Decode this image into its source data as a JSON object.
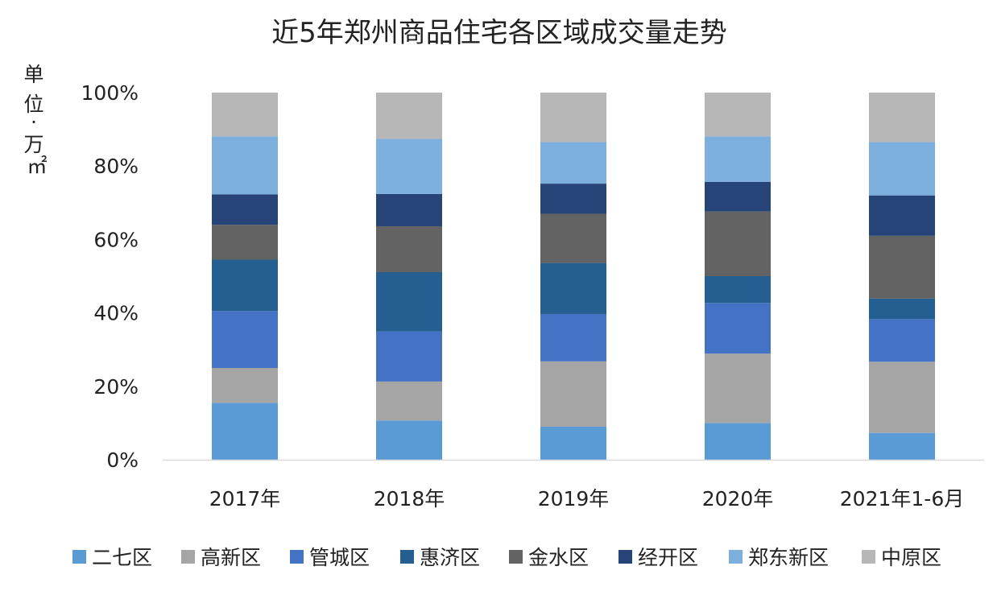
{
  "chart_data": {
    "type": "bar",
    "stacked": true,
    "normalized": true,
    "title": "近5年郑州商品住宅各区域成交量走势",
    "ylabel_lines": [
      "单",
      "位",
      "·",
      "万",
      "㎡"
    ],
    "ylim": [
      0,
      100
    ],
    "yticks": [
      0,
      20,
      40,
      60,
      80,
      100
    ],
    "ytick_labels": [
      "0%",
      "20%",
      "40%",
      "60%",
      "80%",
      "100%"
    ],
    "grid": false,
    "legend_position": "bottom",
    "categories": [
      "2017年",
      "2018年",
      "2019年",
      "2020年",
      "2021年1-6月"
    ],
    "series": [
      {
        "name": "二七区",
        "color": "#5b9bd5",
        "values": [
          15.5,
          10.7,
          9.0,
          10.0,
          7.3
        ]
      },
      {
        "name": "高新区",
        "color": "#a5a5a5",
        "values": [
          9.5,
          10.6,
          17.8,
          18.9,
          19.4
        ]
      },
      {
        "name": "管城区",
        "color": "#4472c4",
        "values": [
          15.5,
          13.6,
          12.9,
          13.8,
          11.6
        ]
      },
      {
        "name": "惠济区",
        "color": "#255e91",
        "values": [
          14.0,
          16.2,
          13.9,
          7.3,
          5.6
        ]
      },
      {
        "name": "金水区",
        "color": "#636363",
        "values": [
          9.5,
          12.5,
          13.4,
          17.6,
          17.1
        ]
      },
      {
        "name": "经开区",
        "color": "#264478",
        "values": [
          8.3,
          8.8,
          8.2,
          8.1,
          11.0
        ]
      },
      {
        "name": "郑东新区",
        "color": "#7cafdd",
        "values": [
          15.8,
          15.0,
          11.3,
          12.4,
          14.5
        ]
      },
      {
        "name": "中原区",
        "color": "#b7b7b7",
        "values": [
          11.9,
          12.6,
          13.5,
          11.9,
          13.5
        ]
      }
    ]
  }
}
